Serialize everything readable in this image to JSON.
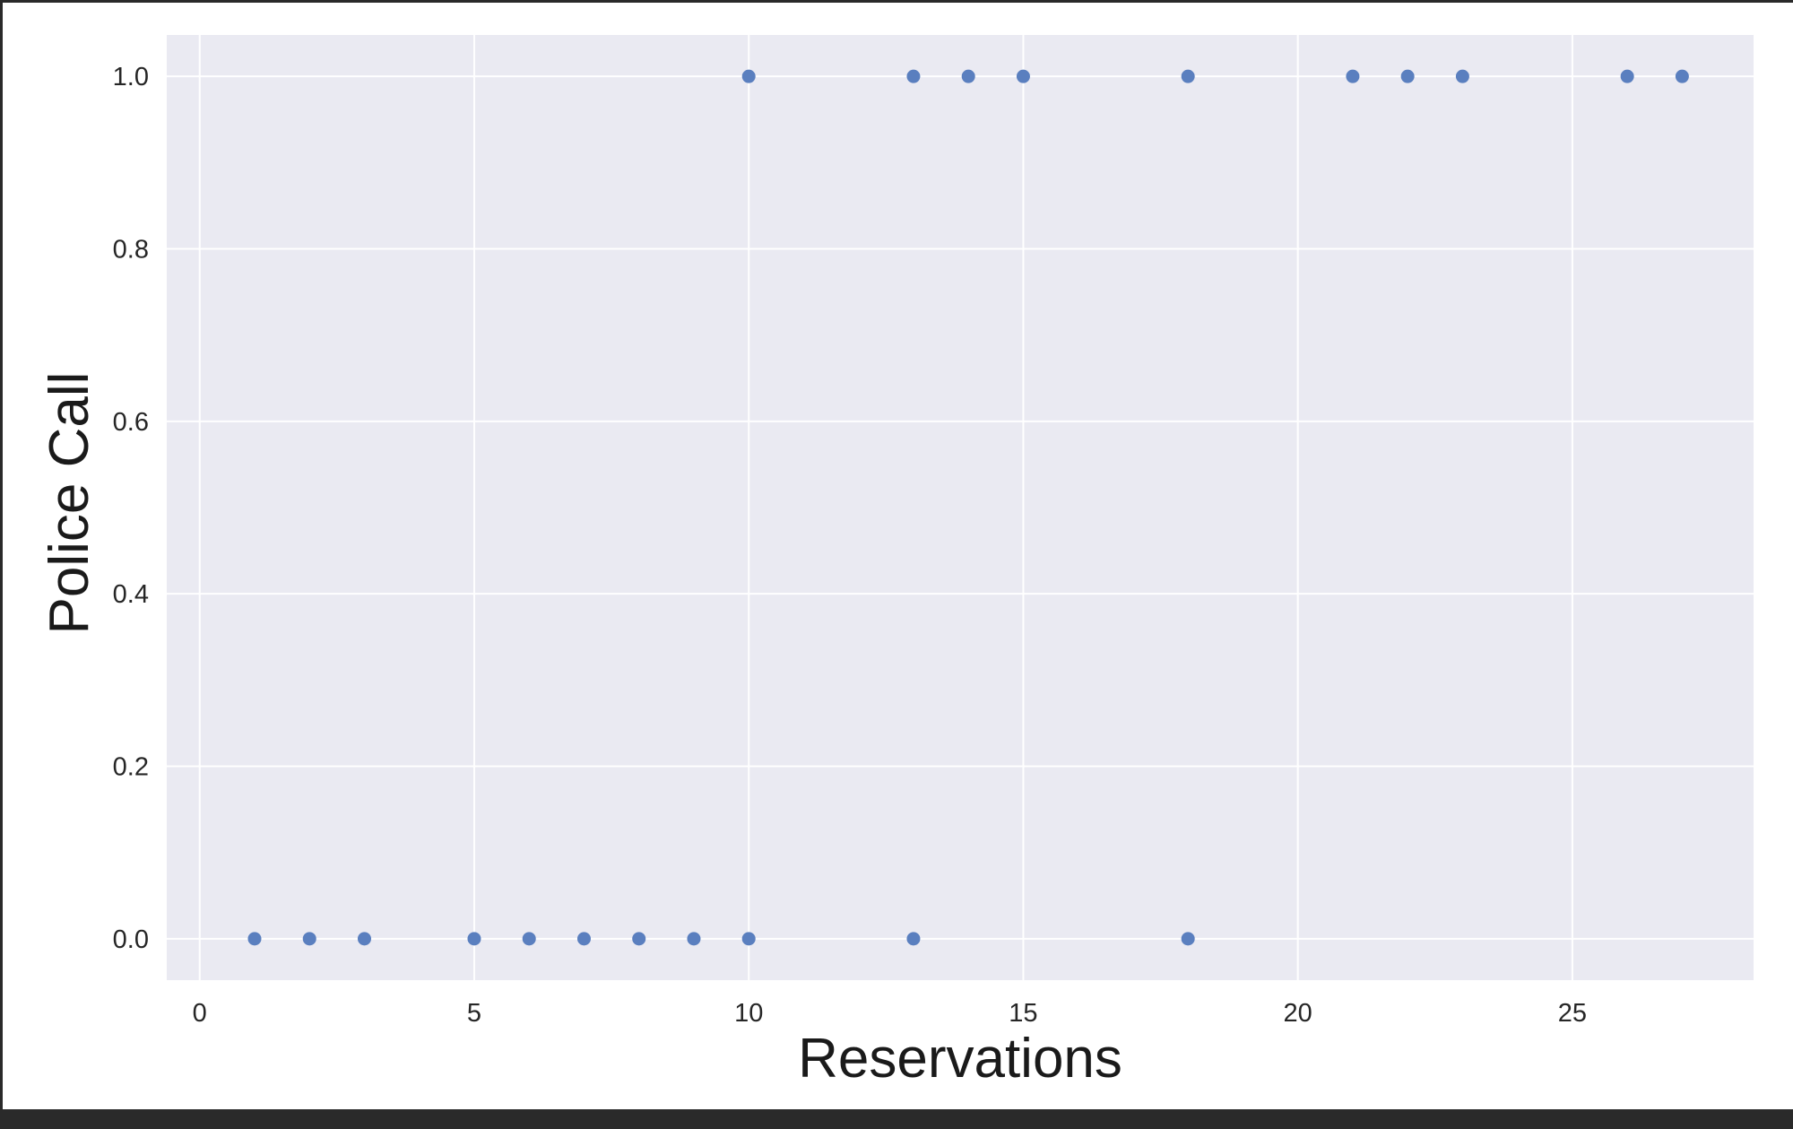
{
  "chart_data": {
    "type": "scatter",
    "xlabel": "Reservations",
    "ylabel": "Police Call",
    "xlim": [
      -0.6,
      28.3
    ],
    "ylim": [
      -0.048,
      1.048
    ],
    "xticks": [
      0,
      5,
      10,
      15,
      20,
      25
    ],
    "yticks": [
      0.0,
      0.2,
      0.4,
      0.6,
      0.8,
      1.0
    ],
    "xtick_labels": [
      "0",
      "5",
      "10",
      "15",
      "20",
      "25"
    ],
    "ytick_labels": [
      "0.0",
      "0.2",
      "0.4",
      "0.6",
      "0.8",
      "1.0"
    ],
    "grid": true,
    "colors": {
      "background": "#eaeaf2",
      "grid": "#ffffff",
      "marker": "#5a7fbf"
    },
    "series": [
      {
        "points": [
          {
            "x": 1,
            "y": 0
          },
          {
            "x": 2,
            "y": 0
          },
          {
            "x": 3,
            "y": 0
          },
          {
            "x": 5,
            "y": 0
          },
          {
            "x": 6,
            "y": 0
          },
          {
            "x": 7,
            "y": 0
          },
          {
            "x": 8,
            "y": 0
          },
          {
            "x": 9,
            "y": 0
          },
          {
            "x": 10,
            "y": 0
          },
          {
            "x": 13,
            "y": 0
          },
          {
            "x": 18,
            "y": 0
          },
          {
            "x": 10,
            "y": 1
          },
          {
            "x": 13,
            "y": 1
          },
          {
            "x": 14,
            "y": 1
          },
          {
            "x": 15,
            "y": 1
          },
          {
            "x": 18,
            "y": 1
          },
          {
            "x": 21,
            "y": 1
          },
          {
            "x": 22,
            "y": 1
          },
          {
            "x": 23,
            "y": 1
          },
          {
            "x": 26,
            "y": 1
          },
          {
            "x": 27,
            "y": 1
          }
        ]
      }
    ]
  }
}
